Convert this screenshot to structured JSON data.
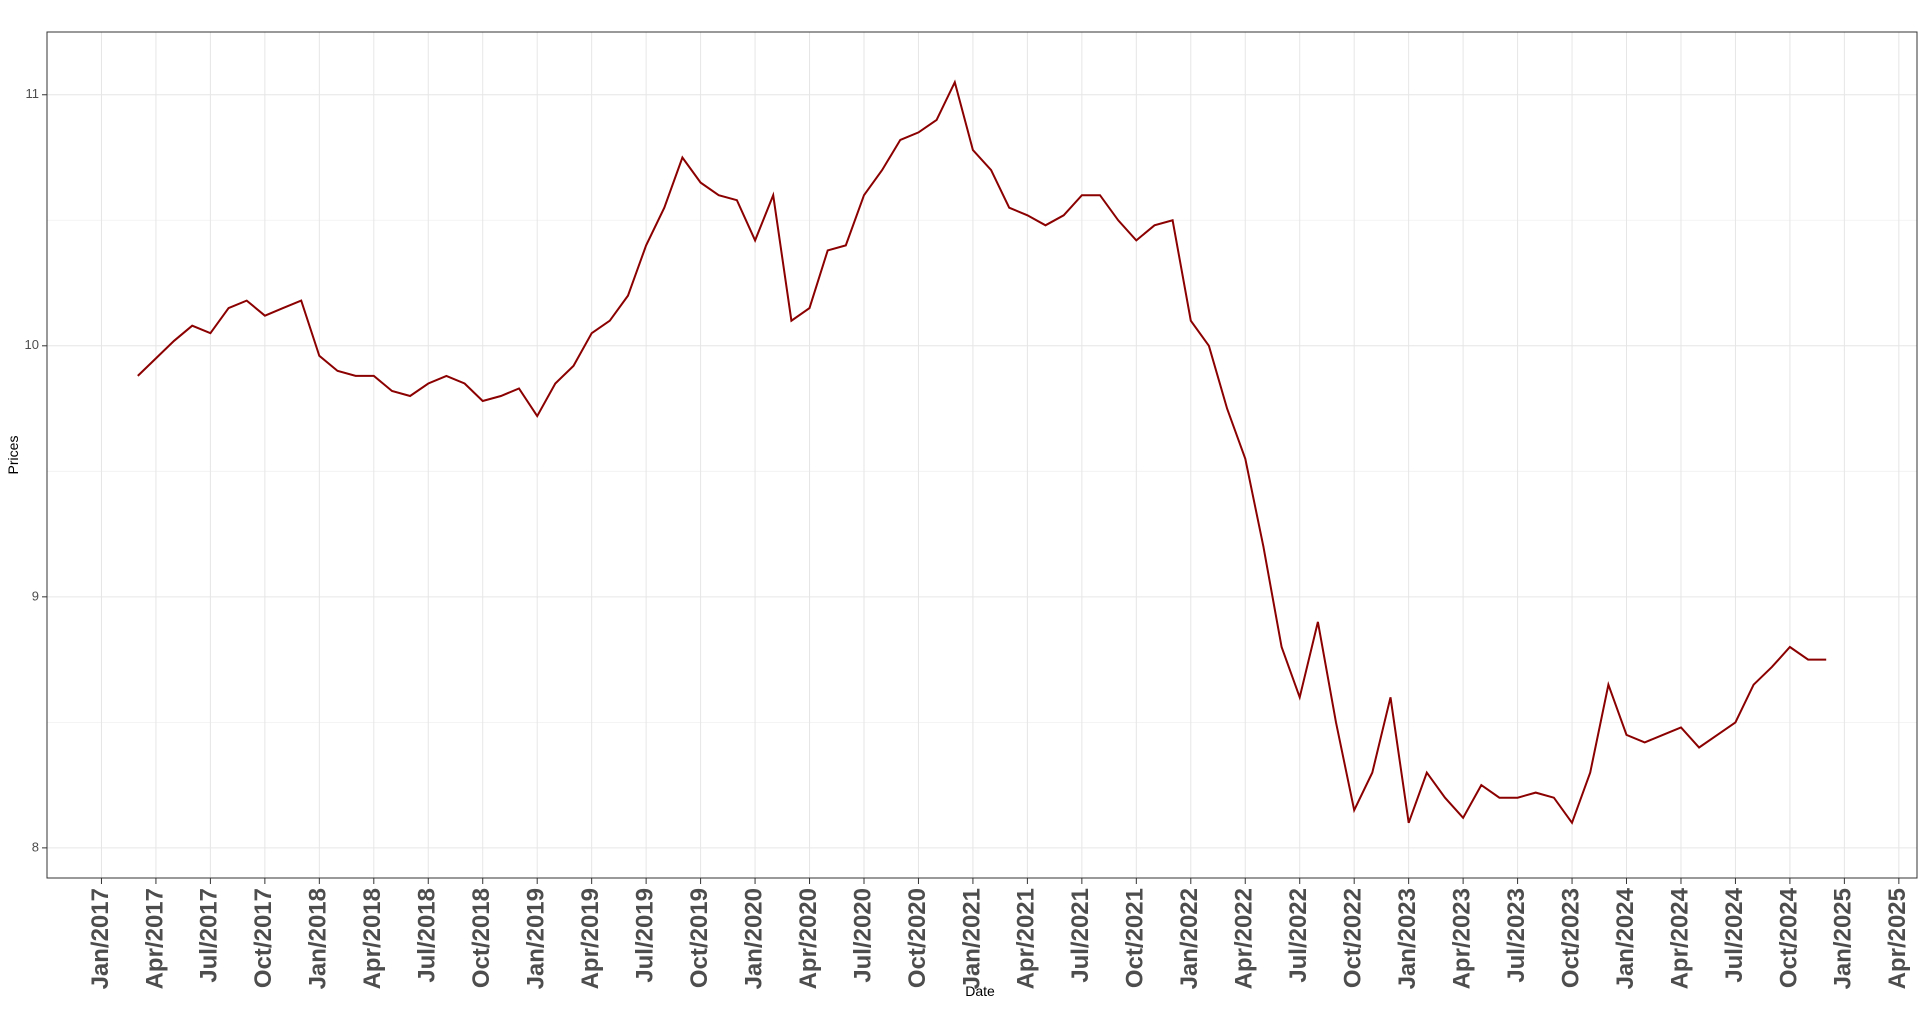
{
  "chart_data": {
    "type": "line",
    "x_label": "Date",
    "y_label": "Prices",
    "color": "#8b0000",
    "grid": true,
    "x": [
      "2017-03",
      "2017-04",
      "2017-05",
      "2017-06",
      "2017-07",
      "2017-08",
      "2017-09",
      "2017-10",
      "2017-11",
      "2017-12",
      "2018-01",
      "2018-02",
      "2018-03",
      "2018-04",
      "2018-05",
      "2018-06",
      "2018-07",
      "2018-08",
      "2018-09",
      "2018-10",
      "2018-11",
      "2018-12",
      "2019-01",
      "2019-02",
      "2019-03",
      "2019-04",
      "2019-05",
      "2019-06",
      "2019-07",
      "2019-08",
      "2019-09",
      "2019-10",
      "2019-11",
      "2019-12",
      "2020-01",
      "2020-02",
      "2020-03",
      "2020-04",
      "2020-05",
      "2020-06",
      "2020-07",
      "2020-08",
      "2020-09",
      "2020-10",
      "2020-11",
      "2020-12",
      "2021-01",
      "2021-02",
      "2021-03",
      "2021-04",
      "2021-05",
      "2021-06",
      "2021-07",
      "2021-08",
      "2021-09",
      "2021-10",
      "2021-11",
      "2021-12",
      "2022-01",
      "2022-02",
      "2022-03",
      "2022-04",
      "2022-05",
      "2022-06",
      "2022-07",
      "2022-08",
      "2022-09",
      "2022-10",
      "2022-11",
      "2022-12",
      "2023-01",
      "2023-02",
      "2023-03",
      "2023-04",
      "2023-05",
      "2023-06",
      "2023-07",
      "2023-08",
      "2023-09",
      "2023-10",
      "2023-11",
      "2023-12",
      "2024-01",
      "2024-02",
      "2024-03",
      "2024-04",
      "2024-05",
      "2024-06",
      "2024-07",
      "2024-08",
      "2024-09",
      "2024-10",
      "2024-11",
      "2024-12"
    ],
    "values": [
      9.88,
      9.95,
      10.02,
      10.08,
      10.05,
      10.15,
      10.18,
      10.12,
      10.15,
      10.18,
      9.96,
      9.9,
      9.88,
      9.88,
      9.82,
      9.8,
      9.85,
      9.88,
      9.85,
      9.78,
      9.8,
      9.83,
      9.72,
      9.85,
      9.92,
      10.05,
      10.1,
      10.2,
      10.4,
      10.55,
      10.75,
      10.65,
      10.6,
      10.58,
      10.42,
      10.6,
      10.1,
      10.15,
      10.38,
      10.4,
      10.6,
      10.7,
      10.82,
      10.85,
      10.9,
      11.05,
      10.78,
      10.7,
      10.55,
      10.52,
      10.48,
      10.52,
      10.6,
      10.6,
      10.5,
      10.42,
      10.48,
      10.5,
      10.1,
      10.0,
      9.75,
      9.55,
      9.2,
      8.8,
      8.6,
      8.9,
      8.5,
      8.15,
      8.3,
      8.6,
      8.1,
      8.3,
      8.2,
      8.12,
      8.25,
      8.2,
      8.2,
      8.22,
      8.2,
      8.1,
      8.3,
      8.65,
      8.45,
      8.42,
      8.45,
      8.48,
      8.4,
      8.45,
      8.5,
      8.65,
      8.72,
      8.8,
      8.75,
      8.75
    ],
    "xlim": [
      "2016-10",
      "2025-05"
    ],
    "xticks": [
      {
        "value": "2017-01",
        "label": "Jan/2017"
      },
      {
        "value": "2017-04",
        "label": "Apr/2017"
      },
      {
        "value": "2017-07",
        "label": "Jul/2017"
      },
      {
        "value": "2017-10",
        "label": "Oct/2017"
      },
      {
        "value": "2018-01",
        "label": "Jan/2018"
      },
      {
        "value": "2018-04",
        "label": "Apr/2018"
      },
      {
        "value": "2018-07",
        "label": "Jul/2018"
      },
      {
        "value": "2018-10",
        "label": "Oct/2018"
      },
      {
        "value": "2019-01",
        "label": "Jan/2019"
      },
      {
        "value": "2019-04",
        "label": "Apr/2019"
      },
      {
        "value": "2019-07",
        "label": "Jul/2019"
      },
      {
        "value": "2019-10",
        "label": "Oct/2019"
      },
      {
        "value": "2020-01",
        "label": "Jan/2020"
      },
      {
        "value": "2020-04",
        "label": "Apr/2020"
      },
      {
        "value": "2020-07",
        "label": "Jul/2020"
      },
      {
        "value": "2020-10",
        "label": "Oct/2020"
      },
      {
        "value": "2021-01",
        "label": "Jan/2021"
      },
      {
        "value": "2021-04",
        "label": "Apr/2021"
      },
      {
        "value": "2021-07",
        "label": "Jul/2021"
      },
      {
        "value": "2021-10",
        "label": "Oct/2021"
      },
      {
        "value": "2022-01",
        "label": "Jan/2022"
      },
      {
        "value": "2022-04",
        "label": "Apr/2022"
      },
      {
        "value": "2022-07",
        "label": "Jul/2022"
      },
      {
        "value": "2022-10",
        "label": "Oct/2022"
      },
      {
        "value": "2023-01",
        "label": "Jan/2023"
      },
      {
        "value": "2023-04",
        "label": "Apr/2023"
      },
      {
        "value": "2023-07",
        "label": "Jul/2023"
      },
      {
        "value": "2023-10",
        "label": "Oct/2023"
      },
      {
        "value": "2024-01",
        "label": "Jan/2024"
      },
      {
        "value": "2024-04",
        "label": "Apr/2024"
      },
      {
        "value": "2024-07",
        "label": "Jul/2024"
      },
      {
        "value": "2024-10",
        "label": "Oct/2024"
      },
      {
        "value": "2025-01",
        "label": "Jan/2025"
      },
      {
        "value": "2025-04",
        "label": "Apr/2025"
      }
    ],
    "ylim": [
      7.88,
      11.25
    ],
    "yticks": [
      8,
      9,
      10,
      11
    ],
    "y_minor_ticks": [
      8.5,
      9.5,
      10.5
    ]
  }
}
